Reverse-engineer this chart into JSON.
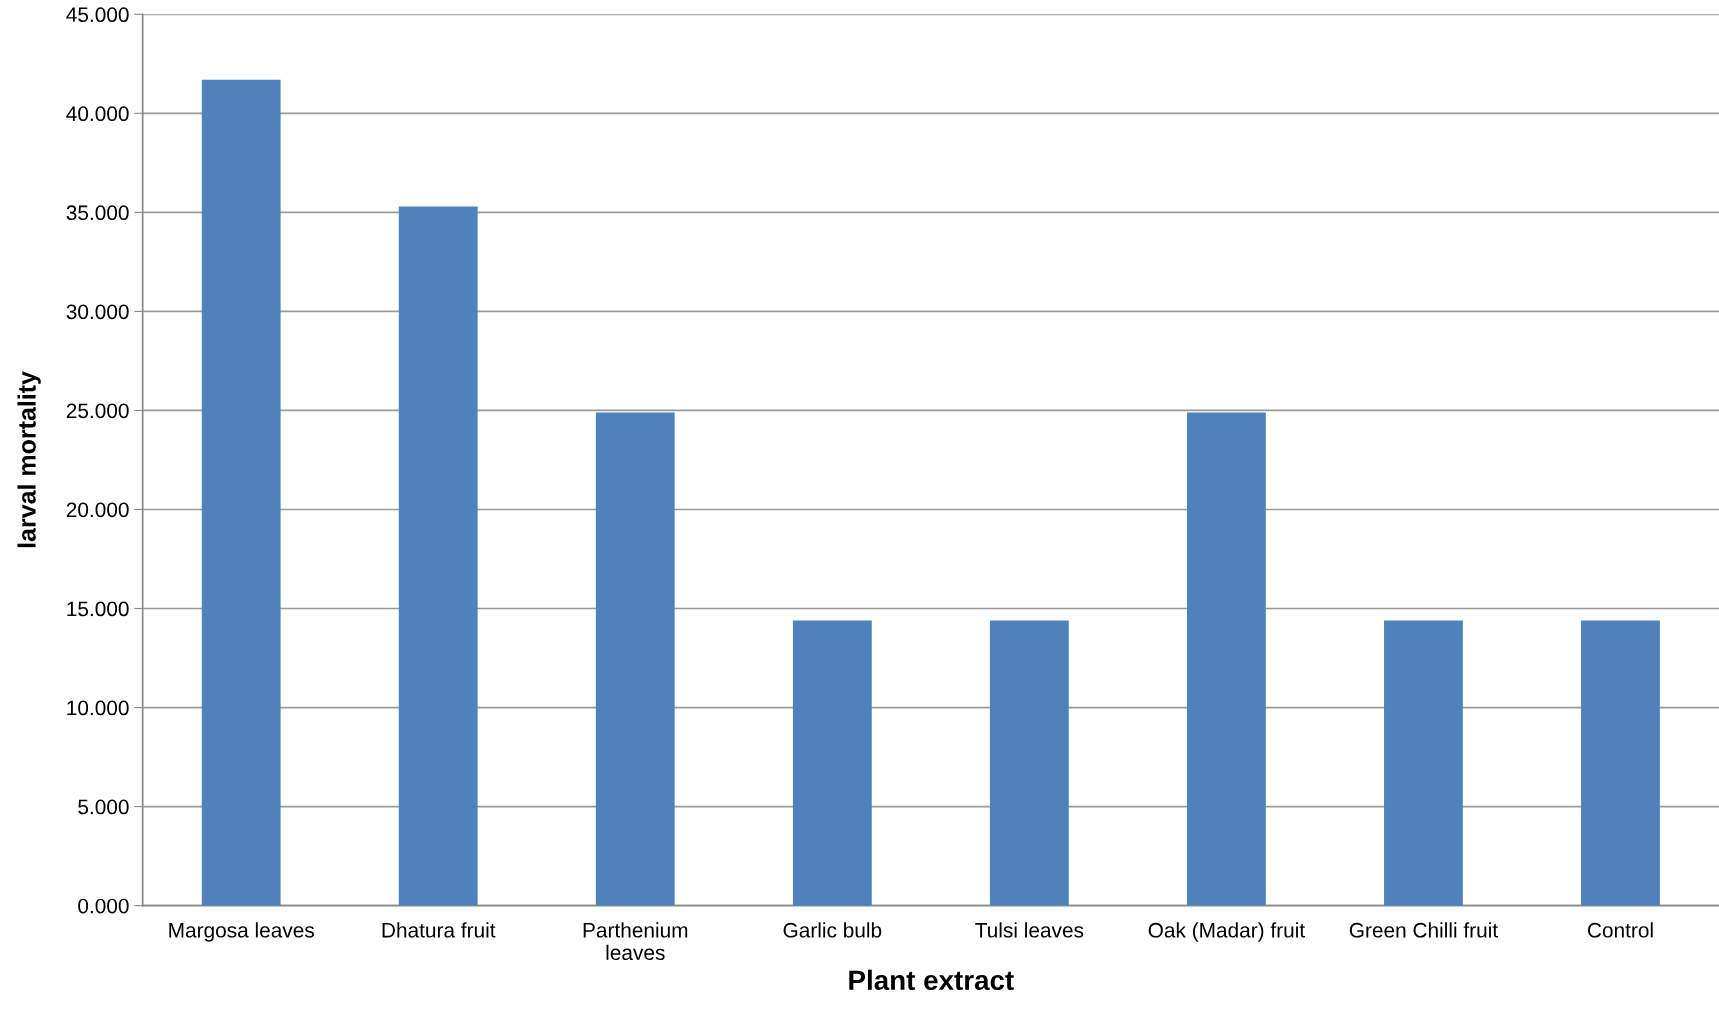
{
  "chart_data": {
    "type": "bar",
    "xlabel": "Plant extract",
    "ylabel": "larval mortality",
    "categories": [
      "Margosa leaves",
      "Dhatura fruit",
      "Parthenium\nleaves",
      "Garlic bulb",
      "Tulsi leaves",
      "Oak (Madar) fruit",
      "Green Chilli fruit",
      "Control"
    ],
    "values": [
      41.7,
      35.3,
      24.9,
      14.4,
      14.4,
      24.9,
      14.4,
      14.4
    ],
    "color": "#4f81bd",
    "ylim": [
      0,
      45
    ],
    "yticks": [
      {
        "value": 0,
        "label": "0.000"
      },
      {
        "value": 5,
        "label": "5.000"
      },
      {
        "value": 10,
        "label": "10.000"
      },
      {
        "value": 15,
        "label": "15.000"
      },
      {
        "value": 20,
        "label": "20.000"
      },
      {
        "value": 25,
        "label": "25.000"
      },
      {
        "value": 30,
        "label": "30.000"
      },
      {
        "value": 35,
        "label": "35.000"
      },
      {
        "value": 40,
        "label": "40.000"
      },
      {
        "value": 45,
        "label": "45.000"
      }
    ],
    "grid": "y",
    "legend": false
  }
}
